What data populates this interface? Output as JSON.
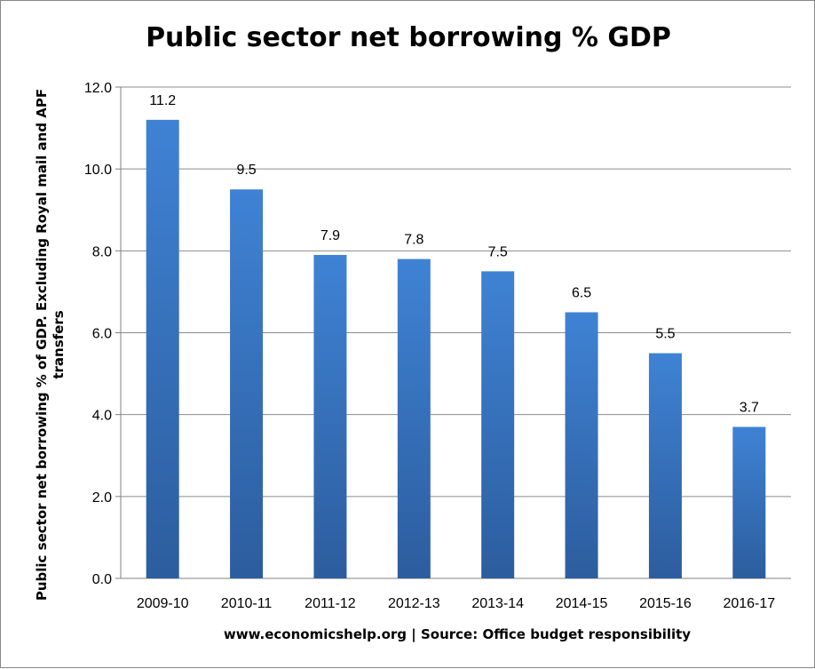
{
  "chart_data": {
    "type": "bar",
    "title": "Public sector net borrowing % GDP",
    "ylabel_line1": "Public sector net borrowing % of GDP. Excluding Royal mail and APF",
    "ylabel_line2": "transfers",
    "xlabel": "www.economicshelp.org | Source: Office budget responsibility",
    "categories": [
      "2009-10",
      "2010-11",
      "2011-12",
      "2012-13",
      "2013-14",
      "2014-15",
      "2015-16",
      "2016-17"
    ],
    "values": [
      11.2,
      9.5,
      7.9,
      7.8,
      7.5,
      6.5,
      5.5,
      3.7
    ],
    "data_labels": [
      "11.2",
      "9.5",
      "7.9",
      "7.8",
      "7.5",
      "6.5",
      "5.5",
      "3.7"
    ],
    "yticks": [
      "0.0",
      "2.0",
      "4.0",
      "6.0",
      "8.0",
      "10.0",
      "12.0"
    ],
    "ylim": [
      0,
      12
    ],
    "grid": true,
    "legend": "none",
    "bar_color_top": "#3f82d4",
    "bar_color_bottom": "#2c5d9e"
  }
}
